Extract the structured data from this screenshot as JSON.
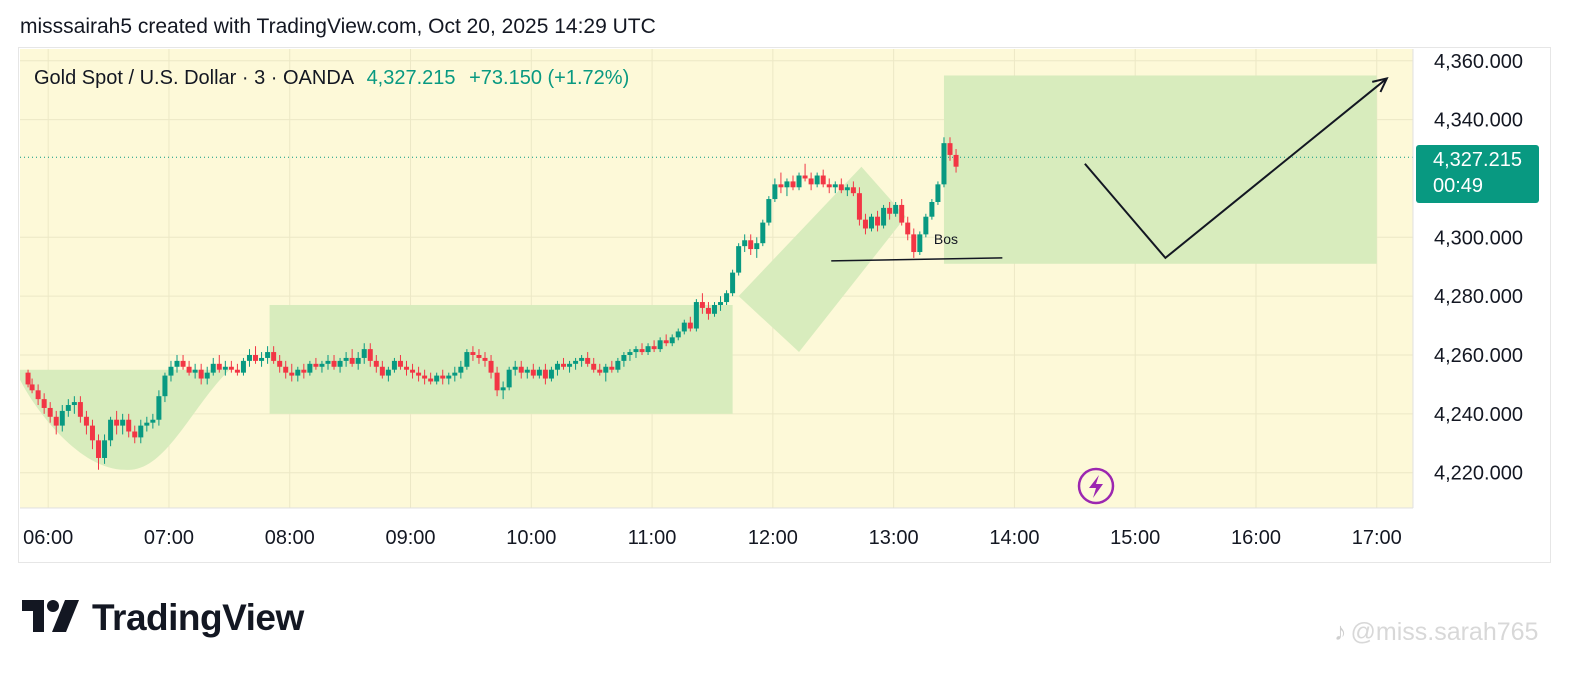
{
  "header": {
    "text": "misssairah5 created with TradingView.com, Oct 20, 2025 14:29 UTC"
  },
  "legend": {
    "symbol": "Gold Spot / U.S. Dollar · 3 · OANDA",
    "price": "4,327.215",
    "change": "+73.150 (+1.72%)"
  },
  "price_label": {
    "price": "4,327.215",
    "countdown": "00:49"
  },
  "branding": {
    "logo_text": "TradingView"
  },
  "watermark": {
    "text": "@miss.sarah765",
    "icon": "tiktok-icon"
  },
  "colors": {
    "up": "#089981",
    "down": "#f23645",
    "zone": "#d8ecbd",
    "background": "#fdf9d8",
    "flash": "#9c27b0"
  },
  "chart_data": {
    "type": "candlestick",
    "ylim": [
      4208,
      4364
    ],
    "y_ticks": [
      4360,
      4340,
      4300,
      4280,
      4260,
      4240,
      4220
    ],
    "y_tick_labels": [
      "4,360.000",
      "4,340.000",
      "4,300.000",
      "4,280.000",
      "4,260.000",
      "4,240.000",
      "4,220.000"
    ],
    "x_ticks": [
      "06:00",
      "07:00",
      "08:00",
      "09:00",
      "10:00",
      "11:00",
      "12:00",
      "13:00",
      "14:00",
      "15:00",
      "16:00",
      "17:00"
    ],
    "x_range_minutes": [
      346,
      1038
    ],
    "last_price": 4327.215,
    "annotations": [
      {
        "type": "text",
        "label": "Bos",
        "x": 800,
        "y": 4299.5
      },
      {
        "type": "line",
        "from": [
          749,
          4292
        ],
        "to": [
          834,
          4293
        ]
      },
      {
        "type": "path",
        "points": [
          [
            875,
            4325
          ],
          [
            915,
            4293
          ],
          [
            1025,
            4354
          ]
        ]
      }
    ],
    "zones": [
      {
        "shape": "bowl",
        "x0": 346,
        "x1": 450,
        "top": 4255,
        "bottom": 4221
      },
      {
        "shape": "rect",
        "x0": 470,
        "x1": 700,
        "top": 4277,
        "bottom": 4240
      },
      {
        "shape": "parallelogram",
        "points": [
          [
            703,
            4280
          ],
          [
            764,
            4324
          ],
          [
            786,
            4307
          ],
          [
            733,
            4261
          ]
        ]
      },
      {
        "shape": "rect",
        "x0": 805,
        "x1": 1020,
        "top": 4355,
        "bottom": 4291
      }
    ],
    "ohlc": [
      [
        350,
        4254,
        4255,
        4249,
        4250
      ],
      [
        352,
        4250,
        4252,
        4247,
        4248
      ],
      [
        355,
        4248,
        4250,
        4243,
        4245
      ],
      [
        358,
        4245,
        4247,
        4240,
        4242
      ],
      [
        361,
        4242,
        4244,
        4237,
        4239
      ],
      [
        364,
        4239,
        4241,
        4233,
        4236
      ],
      [
        367,
        4236,
        4243,
        4234,
        4241
      ],
      [
        370,
        4241,
        4245,
        4239,
        4243
      ],
      [
        373,
        4243,
        4246,
        4240,
        4244
      ],
      [
        376,
        4244,
        4246,
        4237,
        4239
      ],
      [
        379,
        4239,
        4241,
        4233,
        4236
      ],
      [
        382,
        4236,
        4238,
        4228,
        4231
      ],
      [
        385,
        4231,
        4233,
        4221,
        4225
      ],
      [
        388,
        4225,
        4233,
        4223,
        4231
      ],
      [
        391,
        4231,
        4239,
        4229,
        4238
      ],
      [
        394,
        4238,
        4241,
        4233,
        4236
      ],
      [
        397,
        4236,
        4240,
        4233,
        4238
      ],
      [
        400,
        4238,
        4240,
        4232,
        4234
      ],
      [
        403,
        4234,
        4236,
        4230,
        4232
      ],
      [
        406,
        4232,
        4238,
        4230,
        4236
      ],
      [
        409,
        4236,
        4239,
        4234,
        4237
      ],
      [
        412,
        4237,
        4240,
        4235,
        4238
      ],
      [
        415,
        4238,
        4248,
        4236,
        4246
      ],
      [
        418,
        4246,
        4254,
        4244,
        4253
      ],
      [
        421,
        4253,
        4258,
        4251,
        4256
      ],
      [
        424,
        4256,
        4260,
        4254,
        4258
      ],
      [
        427,
        4258,
        4260,
        4255,
        4256
      ],
      [
        430,
        4256,
        4258,
        4253,
        4254
      ],
      [
        433,
        4254,
        4257,
        4252,
        4255
      ],
      [
        436,
        4255,
        4257,
        4250,
        4252
      ],
      [
        439,
        4252,
        4256,
        4250,
        4254
      ],
      [
        442,
        4254,
        4259,
        4253,
        4257
      ],
      [
        445,
        4257,
        4260,
        4254,
        4255
      ],
      [
        448,
        4255,
        4258,
        4253,
        4256
      ],
      [
        451,
        4256,
        4258,
        4254,
        4255
      ],
      [
        454,
        4255,
        4257,
        4253,
        4254
      ],
      [
        457,
        4254,
        4259,
        4253,
        4258
      ],
      [
        460,
        4258,
        4262,
        4256,
        4260
      ],
      [
        463,
        4260,
        4263,
        4257,
        4258
      ],
      [
        466,
        4258,
        4261,
        4256,
        4259
      ],
      [
        469,
        4259,
        4263,
        4257,
        4261
      ],
      [
        472,
        4261,
        4263,
        4257,
        4258
      ],
      [
        475,
        4258,
        4260,
        4254,
        4256
      ],
      [
        478,
        4256,
        4258,
        4252,
        4254
      ],
      [
        481,
        4254,
        4257,
        4251,
        4253
      ],
      [
        484,
        4253,
        4256,
        4251,
        4255
      ],
      [
        487,
        4255,
        4257,
        4252,
        4254
      ],
      [
        490,
        4254,
        4258,
        4253,
        4257
      ],
      [
        493,
        4257,
        4259,
        4255,
        4256
      ],
      [
        496,
        4256,
        4258,
        4254,
        4257
      ],
      [
        499,
        4257,
        4260,
        4255,
        4258
      ],
      [
        502,
        4258,
        4260,
        4255,
        4256
      ],
      [
        505,
        4256,
        4259,
        4254,
        4258
      ],
      [
        508,
        4258,
        4261,
        4256,
        4259
      ],
      [
        511,
        4259,
        4262,
        4256,
        4257
      ],
      [
        514,
        4257,
        4261,
        4255,
        4259
      ],
      [
        517,
        4259,
        4264,
        4257,
        4262
      ],
      [
        520,
        4262,
        4264,
        4256,
        4258
      ],
      [
        523,
        4258,
        4260,
        4254,
        4256
      ],
      [
        526,
        4256,
        4258,
        4252,
        4253
      ],
      [
        529,
        4253,
        4256,
        4251,
        4255
      ],
      [
        532,
        4255,
        4259,
        4254,
        4258
      ],
      [
        535,
        4258,
        4260,
        4255,
        4256
      ],
      [
        538,
        4256,
        4258,
        4253,
        4255
      ],
      [
        541,
        4255,
        4257,
        4252,
        4254
      ],
      [
        544,
        4254,
        4256,
        4251,
        4253
      ],
      [
        547,
        4253,
        4255,
        4250,
        4252
      ],
      [
        550,
        4252,
        4254,
        4250,
        4251
      ],
      [
        553,
        4251,
        4254,
        4250,
        4253
      ],
      [
        556,
        4253,
        4255,
        4250,
        4252
      ],
      [
        559,
        4252,
        4254,
        4250,
        4253
      ],
      [
        562,
        4253,
        4256,
        4251,
        4254
      ],
      [
        565,
        4254,
        4258,
        4252,
        4256
      ],
      [
        568,
        4256,
        4262,
        4255,
        4261
      ],
      [
        571,
        4261,
        4263,
        4258,
        4260
      ],
      [
        574,
        4260,
        4262,
        4257,
        4259
      ],
      [
        577,
        4259,
        4261,
        4256,
        4258
      ],
      [
        580,
        4258,
        4260,
        4252,
        4254
      ],
      [
        583,
        4254,
        4256,
        4246,
        4248
      ],
      [
        586,
        4248,
        4251,
        4245,
        4249
      ],
      [
        589,
        4249,
        4256,
        4248,
        4255
      ],
      [
        592,
        4255,
        4258,
        4253,
        4256
      ],
      [
        595,
        4256,
        4258,
        4252,
        4254
      ],
      [
        598,
        4254,
        4256,
        4252,
        4255
      ],
      [
        601,
        4255,
        4257,
        4252,
        4253
      ],
      [
        604,
        4253,
        4256,
        4252,
        4255
      ],
      [
        607,
        4255,
        4257,
        4250,
        4252
      ],
      [
        610,
        4252,
        4256,
        4251,
        4255
      ],
      [
        613,
        4255,
        4258,
        4253,
        4257
      ],
      [
        616,
        4257,
        4259,
        4255,
        4256
      ],
      [
        619,
        4256,
        4258,
        4254,
        4257
      ],
      [
        622,
        4257,
        4259,
        4255,
        4258
      ],
      [
        625,
        4258,
        4260,
        4256,
        4259
      ],
      [
        628,
        4259,
        4261,
        4256,
        4257
      ],
      [
        631,
        4257,
        4259,
        4254,
        4255
      ],
      [
        634,
        4255,
        4257,
        4253,
        4254
      ],
      [
        637,
        4254,
        4257,
        4251,
        4256
      ],
      [
        640,
        4256,
        4258,
        4254,
        4255
      ],
      [
        643,
        4255,
        4259,
        4254,
        4258
      ],
      [
        646,
        4258,
        4261,
        4256,
        4260
      ],
      [
        649,
        4260,
        4262,
        4258,
        4261
      ],
      [
        652,
        4261,
        4263,
        4259,
        4262
      ],
      [
        655,
        4262,
        4264,
        4260,
        4261
      ],
      [
        658,
        4261,
        4264,
        4260,
        4263
      ],
      [
        661,
        4263,
        4265,
        4261,
        4262
      ],
      [
        664,
        4262,
        4266,
        4261,
        4265
      ],
      [
        667,
        4265,
        4267,
        4263,
        4264
      ],
      [
        670,
        4264,
        4267,
        4263,
        4266
      ],
      [
        673,
        4266,
        4269,
        4265,
        4268
      ],
      [
        676,
        4268,
        4272,
        4267,
        4271
      ],
      [
        679,
        4271,
        4273,
        4268,
        4269
      ],
      [
        682,
        4269,
        4279,
        4268,
        4278
      ],
      [
        685,
        4278,
        4281,
        4274,
        4276
      ],
      [
        688,
        4276,
        4278,
        4272,
        4274
      ],
      [
        691,
        4274,
        4278,
        4273,
        4277
      ],
      [
        694,
        4277,
        4280,
        4275,
        4278
      ],
      [
        697,
        4278,
        4282,
        4277,
        4281
      ],
      [
        700,
        4281,
        4289,
        4280,
        4288
      ],
      [
        703,
        4288,
        4298,
        4287,
        4297
      ],
      [
        706,
        4297,
        4301,
        4295,
        4299
      ],
      [
        709,
        4299,
        4301,
        4294,
        4296
      ],
      [
        712,
        4296,
        4300,
        4293,
        4298
      ],
      [
        715,
        4298,
        4306,
        4297,
        4305
      ],
      [
        718,
        4305,
        4314,
        4304,
        4313
      ],
      [
        721,
        4313,
        4320,
        4312,
        4318
      ],
      [
        724,
        4318,
        4322,
        4315,
        4317
      ],
      [
        727,
        4317,
        4320,
        4314,
        4319
      ],
      [
        730,
        4319,
        4321,
        4316,
        4317
      ],
      [
        733,
        4317,
        4322,
        4316,
        4321
      ],
      [
        736,
        4321,
        4325,
        4319,
        4320
      ],
      [
        739,
        4320,
        4322,
        4316,
        4318
      ],
      [
        742,
        4318,
        4322,
        4317,
        4321
      ],
      [
        745,
        4321,
        4323,
        4317,
        4318
      ],
      [
        748,
        4318,
        4320,
        4315,
        4317
      ],
      [
        751,
        4317,
        4319,
        4315,
        4318
      ],
      [
        754,
        4318,
        4320,
        4315,
        4316
      ],
      [
        757,
        4316,
        4318,
        4314,
        4317
      ],
      [
        760,
        4317,
        4319,
        4314,
        4315
      ],
      [
        763,
        4315,
        4317,
        4304,
        4306
      ],
      [
        766,
        4306,
        4308,
        4301,
        4303
      ],
      [
        769,
        4303,
        4308,
        4302,
        4307
      ],
      [
        772,
        4307,
        4309,
        4302,
        4304
      ],
      [
        775,
        4304,
        4311,
        4303,
        4310
      ],
      [
        778,
        4310,
        4312,
        4306,
        4308
      ],
      [
        781,
        4308,
        4312,
        4307,
        4311
      ],
      [
        784,
        4311,
        4313,
        4304,
        4305
      ],
      [
        787,
        4305,
        4307,
        4299,
        4301
      ],
      [
        790,
        4301,
        4303,
        4293,
        4295
      ],
      [
        793,
        4295,
        4302,
        4294,
        4301
      ],
      [
        796,
        4301,
        4308,
        4300,
        4307
      ],
      [
        799,
        4307,
        4313,
        4306,
        4312
      ],
      [
        802,
        4312,
        4319,
        4311,
        4318
      ],
      [
        805,
        4318,
        4334,
        4317,
        4332
      ],
      [
        808,
        4332,
        4334,
        4326,
        4328
      ],
      [
        811,
        4328,
        4330,
        4322,
        4324
      ]
    ]
  }
}
